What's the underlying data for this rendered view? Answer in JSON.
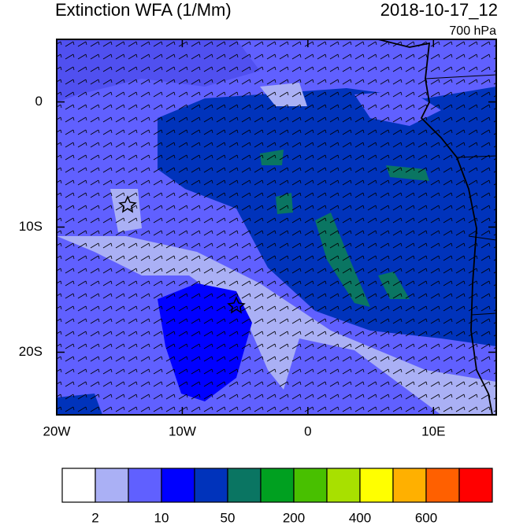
{
  "map_data": {
    "title": "Extinction WFA (1/Mm)",
    "valid_time": "2018-10-17_12",
    "level": "700 hPa",
    "xlim": [
      -20,
      15
    ],
    "ylim": [
      -25,
      5
    ],
    "xticks": [
      {
        "value": -20,
        "label": "20W"
      },
      {
        "value": -10,
        "label": "10W"
      },
      0,
      {
        "value": 10,
        "label": "10E"
      }
    ],
    "yticks": [
      0,
      {
        "value": -10,
        "label": "10S"
      },
      {
        "value": -20,
        "label": "20S"
      }
    ],
    "colorbar": {
      "colors": [
        "#ffffff",
        "#aab0f5",
        "#6060ff",
        "#0000ff",
        "#0033bb",
        "#0a7562",
        "#00a020",
        "#48c000",
        "#a8e000",
        "#ffff00",
        "#ffb000",
        "#ff6000",
        "#ff0000"
      ],
      "levels": [
        2,
        null,
        10,
        null,
        50,
        null,
        200,
        null,
        400,
        null,
        600,
        null
      ]
    }
  }
}
